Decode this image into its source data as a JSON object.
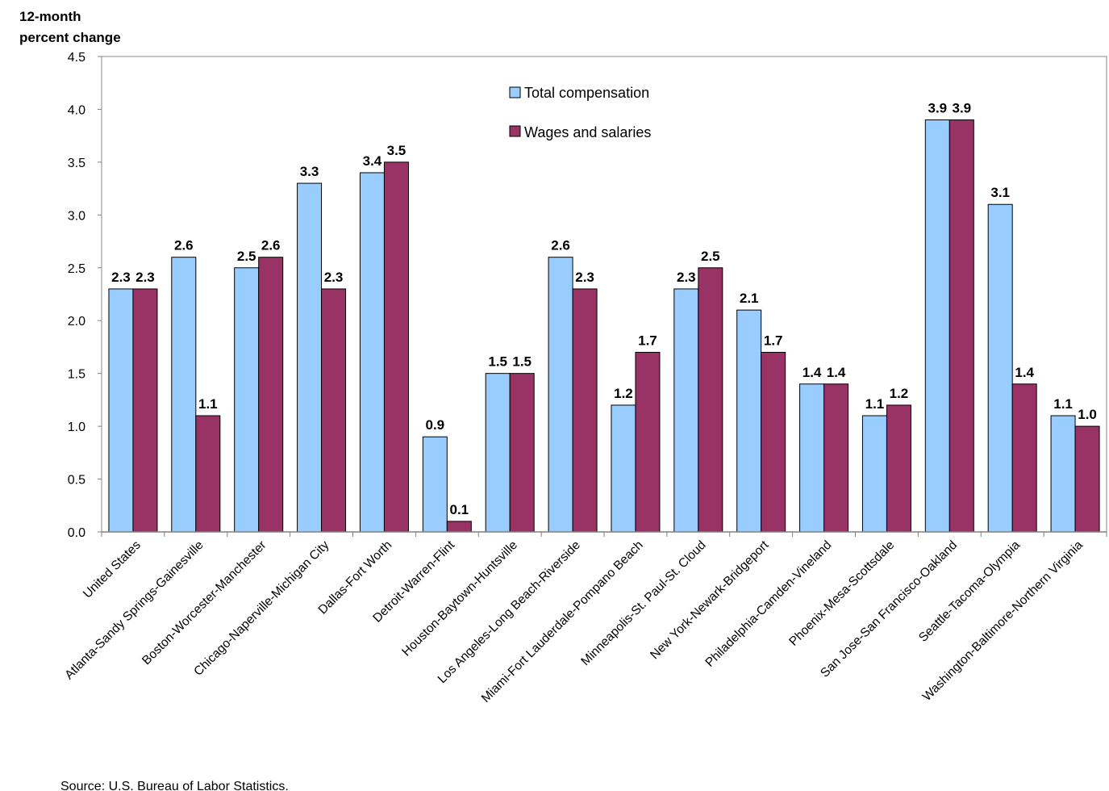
{
  "chart_data": {
    "type": "bar",
    "ylabel_lines": [
      "12-month",
      "percent change"
    ],
    "ylim": [
      0,
      4.5
    ],
    "yticks": [
      "0.0",
      "0.5",
      "1.0",
      "1.5",
      "2.0",
      "2.5",
      "3.0",
      "3.5",
      "4.0",
      "4.5"
    ],
    "grid": false,
    "legend_position": "top-center",
    "categories": [
      "United States",
      "Atlanta-Sandy Springs-Gainesville",
      "Boston-Worcester-Manchester",
      "Chicago-Naperville-Michigan City",
      "Dallas-Fort Worth",
      "Detroit-Warren-Flint",
      "Houston-Baytown-Huntsville",
      "Los Angeles-Long Beach-Riverside",
      "Miami-Fort Lauderdale-Pompano Beach",
      "Minneapolis-St. Paul-St. Cloud",
      "New York-Newark-Bridgeport",
      "Philadelphia-Camden-Vineland",
      "Phoenix-Mesa-Scottsdale",
      "San Jose-San Francisco-Oakland",
      "Seattle-Tacoma-Olympia",
      "Washington-Baltimore-Northern Virginia"
    ],
    "series": [
      {
        "name": "Total compensation",
        "color": "#99ccff",
        "values": [
          2.3,
          2.6,
          2.5,
          3.3,
          3.4,
          0.9,
          1.5,
          2.6,
          1.2,
          2.3,
          2.1,
          1.4,
          1.1,
          3.9,
          3.1,
          1.1
        ],
        "labels": [
          "2.3",
          "2.6",
          "2.5",
          "3.3",
          "3.4",
          "0.9",
          "1.5",
          "2.6",
          "1.2",
          "2.3",
          "2.1",
          "1.4",
          "1.1",
          "3.9",
          "3.1",
          "1.1"
        ]
      },
      {
        "name": "Wages and salaries",
        "color": "#993366",
        "values": [
          2.3,
          1.1,
          2.6,
          2.3,
          3.5,
          0.1,
          1.5,
          2.3,
          1.7,
          2.5,
          1.7,
          1.4,
          1.2,
          3.9,
          1.4,
          1.0
        ],
        "labels": [
          "2.3",
          "1.1",
          "2.6",
          "2.3",
          "3.5",
          "0.1",
          "1.5",
          "2.3",
          "1.7",
          "2.5",
          "1.7",
          "1.4",
          "1.2",
          "3.9",
          "1.4",
          "1.0"
        ]
      }
    ],
    "source": "Source: U.S. Bureau of Labor Statistics."
  }
}
